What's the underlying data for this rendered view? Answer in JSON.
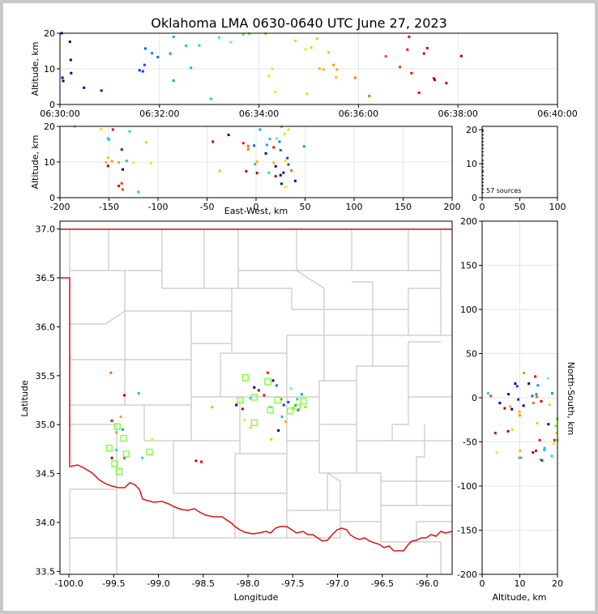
{
  "title": "Oklahoma LMA 0630-0640 UTC June 27, 2023",
  "colors": {
    "state_border": "#e01010",
    "county_lines": "#c8c8c8",
    "station": "#7cff30",
    "frame_bg": "#c8c8c8"
  },
  "chart_data": [
    {
      "id": "time_height",
      "type": "scatter",
      "xlabel": "",
      "ylabel": "Altitude, km",
      "xticks": [
        "06:30:00",
        "06:32:00",
        "06:34:00",
        "06:36:00",
        "06:38:00",
        "06:40:00"
      ],
      "xlim": [
        0,
        600
      ],
      "ylim": [
        0,
        20
      ],
      "yticks": [
        "0",
        "10",
        "20"
      ],
      "x_unit": "seconds after 06:30:00",
      "points": [
        [
          2,
          20,
          "#0000d0"
        ],
        [
          12,
          17.6,
          "#0000a0"
        ],
        [
          13,
          12.5,
          "#00008b"
        ],
        [
          13.5,
          8.8,
          "#0000a0"
        ],
        [
          3,
          7.5,
          "#000080"
        ],
        [
          4,
          6.6,
          "#000090"
        ],
        [
          29,
          4.7,
          "#0000c0"
        ],
        [
          50,
          3.9,
          "#0010e0"
        ],
        [
          96,
          9.6,
          "#0030ff"
        ],
        [
          100,
          9.3,
          "#0040ff"
        ],
        [
          102,
          11.1,
          "#0050ff"
        ],
        [
          103,
          15.7,
          "#0060ff"
        ],
        [
          111,
          14.4,
          "#0080ff"
        ],
        [
          118,
          13.3,
          "#0070ff"
        ],
        [
          133,
          14.3,
          "#00a0ff"
        ],
        [
          137,
          19,
          "#00b0ff"
        ],
        [
          137,
          6.7,
          "#00a0ff"
        ],
        [
          152,
          16.5,
          "#00c8ff"
        ],
        [
          158,
          10.3,
          "#00c0ff"
        ],
        [
          168,
          16.6,
          "#00e0e0"
        ],
        [
          182,
          1.6,
          "#00d0e0"
        ],
        [
          192,
          18.8,
          "#20ffc0"
        ],
        [
          206,
          17.5,
          "#60ff90"
        ],
        [
          221,
          19.7,
          "#40ff40"
        ],
        [
          228,
          19.9,
          "#60ff20"
        ],
        [
          248,
          19.9,
          "#a0f000"
        ],
        [
          252,
          8,
          "#e0f000"
        ],
        [
          256,
          10,
          "#ffe000"
        ],
        [
          260,
          3.5,
          "#ffe000"
        ],
        [
          284,
          17.9,
          "#e0e000"
        ],
        [
          296,
          15.5,
          "#f0f000"
        ],
        [
          298,
          3,
          "#e0e000"
        ],
        [
          303,
          16,
          "#ffd000"
        ],
        [
          310,
          18.5,
          "#ffc000"
        ],
        [
          313,
          10.1,
          "#ffb000"
        ],
        [
          318,
          9.8,
          "#ffb000"
        ],
        [
          324,
          14.6,
          "#ffc000"
        ],
        [
          330,
          11.1,
          "#ff9000"
        ],
        [
          333,
          7.6,
          "#ffc000"
        ],
        [
          334,
          9.8,
          "#ffa000"
        ],
        [
          356,
          7.5,
          "#ff7000"
        ],
        [
          373,
          2.4,
          "#ff6000"
        ],
        [
          393,
          13.5,
          "#ff4000"
        ],
        [
          410,
          10.5,
          "#ff3000"
        ],
        [
          419,
          15.4,
          "#ff1000"
        ],
        [
          421,
          19,
          "#ff0000"
        ],
        [
          424,
          8.8,
          "#ff0000"
        ],
        [
          433,
          3.3,
          "#e00000"
        ],
        [
          439,
          14.3,
          "#d00000"
        ],
        [
          443,
          15.8,
          "#d00000"
        ],
        [
          451,
          7.3,
          "#c00000"
        ],
        [
          452,
          6.9,
          "#c00000"
        ],
        [
          466,
          6,
          "#b00000"
        ],
        [
          484,
          13.6,
          "#a00000"
        ]
      ]
    },
    {
      "id": "ew_height",
      "type": "scatter",
      "xlabel": "East-West, km",
      "ylabel": "Altitude, km",
      "xlim": [
        -200,
        200
      ],
      "ylim": [
        0,
        20
      ],
      "xticks": [
        "-200",
        "-150",
        "-100",
        "-50",
        "0",
        "50",
        "100",
        "150",
        "200"
      ],
      "yticks": [
        "0",
        "10",
        "20"
      ],
      "points": [
        [
          -185,
          20,
          "#40ff40"
        ],
        [
          -158,
          19.2,
          "#ffe000"
        ],
        [
          -146,
          19.1,
          "#e00000"
        ],
        [
          -151,
          16.6,
          "#00d0ff"
        ],
        [
          -150,
          16.3,
          "#00e0e0"
        ],
        [
          -137,
          13.5,
          "#a00000"
        ],
        [
          -112,
          15.5,
          "#e0e000"
        ],
        [
          -129,
          18.6,
          "#00e0e0"
        ],
        [
          -151,
          11.2,
          "#ffc000"
        ],
        [
          -153,
          9.9,
          "#ffb000"
        ],
        [
          -147,
          10.2,
          "#ff9000"
        ],
        [
          -140,
          9.9,
          "#ffa000"
        ],
        [
          -132,
          10.3,
          "#00c8ff"
        ],
        [
          -125,
          9.8,
          "#ffe000"
        ],
        [
          -136,
          7.9,
          "#00008b"
        ],
        [
          -151,
          8.9,
          "#c00000"
        ],
        [
          -140,
          3.3,
          "#d00000"
        ],
        [
          -136,
          2.3,
          "#ff4000"
        ],
        [
          -120,
          1.6,
          "#00e0e0"
        ],
        [
          -107,
          9.6,
          "#ffe000"
        ],
        [
          -137,
          4,
          "#ff3000"
        ],
        [
          -44,
          15.7,
          "#c00000"
        ],
        [
          -28,
          17.6,
          "#0000a0"
        ],
        [
          -13,
          15.3,
          "#ff1000"
        ],
        [
          -8,
          14.5,
          "#ff6000"
        ],
        [
          -8,
          13.6,
          "#ff7000"
        ],
        [
          -2,
          14.6,
          "#0060ff"
        ],
        [
          4,
          19.1,
          "#00b0ff"
        ],
        [
          10,
          12.4,
          "#0000c0"
        ],
        [
          11,
          14.8,
          "#00a0ff"
        ],
        [
          14,
          16.5,
          "#00c8ff"
        ],
        [
          21,
          16.6,
          "#60ff90"
        ],
        [
          24,
          15.7,
          "#0080ff"
        ],
        [
          26,
          19.9,
          "#60ff20"
        ],
        [
          29,
          17.9,
          "#e0e000"
        ],
        [
          33,
          19.1,
          "#e0e000"
        ],
        [
          18,
          14.1,
          "#ff0000"
        ],
        [
          25,
          13.3,
          "#0070ff"
        ],
        [
          30,
          10.3,
          "#ffe000"
        ],
        [
          32,
          11.1,
          "#0040ff"
        ],
        [
          33,
          9.3,
          "#0050ff"
        ],
        [
          28,
          7,
          "#0000d0"
        ],
        [
          25,
          6.3,
          "#000080"
        ],
        [
          20,
          8.8,
          "#0000a0"
        ],
        [
          36,
          7.6,
          "#ff6000"
        ],
        [
          40,
          4.7,
          "#0000c0"
        ],
        [
          -1,
          9.4,
          "#00c0ff"
        ],
        [
          1,
          10.1,
          "#ffb000"
        ],
        [
          -10,
          7.4,
          "#c00000"
        ],
        [
          1,
          6.9,
          "#b00000"
        ],
        [
          13,
          7,
          "#00e0e0"
        ],
        [
          20,
          6,
          "#c00000"
        ],
        [
          26,
          3.9,
          "#0010e0"
        ],
        [
          30,
          3,
          "#ffe000"
        ],
        [
          -37,
          7.5,
          "#ffb000"
        ],
        [
          49,
          14.4,
          "#00a0ff"
        ],
        [
          18,
          9.8,
          "#ffb000"
        ]
      ]
    },
    {
      "id": "histogram",
      "type": "scatter",
      "xlim": [
        0,
        100
      ],
      "ylim": [
        0,
        21
      ],
      "xticks": [
        "0",
        "50",
        "100"
      ],
      "yticks": [
        "0",
        "10",
        "20"
      ],
      "annotation": "57 sources",
      "points": [
        [
          1,
          20
        ],
        [
          1,
          19.5
        ],
        [
          1,
          18.5
        ],
        [
          1,
          17.5
        ],
        [
          1,
          16.5
        ],
        [
          1,
          15.5
        ],
        [
          1,
          14.5
        ],
        [
          1,
          13.5
        ],
        [
          1,
          12.5
        ],
        [
          1,
          11
        ],
        [
          1,
          10
        ],
        [
          1,
          9
        ],
        [
          1,
          8
        ],
        [
          1,
          7.5
        ],
        [
          1,
          6.5
        ],
        [
          1,
          5.5
        ],
        [
          1,
          4.5
        ],
        [
          1,
          3.5
        ],
        [
          1,
          2.5
        ],
        [
          1,
          1.5
        ]
      ]
    },
    {
      "id": "plan_view",
      "type": "scatter",
      "xlabel": "Longitude",
      "ylabel": "Latitude",
      "xlim": [
        -100.1,
        -95.72
      ],
      "ylim": [
        33.47,
        37.08
      ],
      "xticks": [
        "-100.0",
        "-99.5",
        "-99.0",
        "-98.5",
        "-98.0",
        "-97.5",
        "-97.0",
        "-96.5",
        "-96.0"
      ],
      "yticks": [
        "33.5",
        "34.0",
        "34.5",
        "35.0",
        "35.5",
        "36.0",
        "36.5",
        "37.0"
      ],
      "stations": [
        [
          -99.46,
          34.98
        ],
        [
          -99.39,
          34.86
        ],
        [
          -99.55,
          34.76
        ],
        [
          -99.49,
          34.6
        ],
        [
          -99.44,
          34.52
        ],
        [
          -99.36,
          34.7
        ],
        [
          -99.1,
          34.72
        ],
        [
          -98.09,
          35.25
        ],
        [
          -98.03,
          35.48
        ],
        [
          -97.93,
          35.28
        ],
        [
          -97.93,
          35.02
        ],
        [
          -97.78,
          35.44
        ],
        [
          -97.75,
          35.15
        ],
        [
          -97.67,
          35.25
        ],
        [
          -97.53,
          35.14
        ],
        [
          -97.45,
          35.18
        ],
        [
          -97.38,
          35.24
        ]
      ],
      "points": [
        [
          -99.53,
          35.53,
          "#ff6000"
        ],
        [
          -99.52,
          35.04,
          "#e00000"
        ],
        [
          -99.47,
          34.92,
          "#ff9000"
        ],
        [
          -99.42,
          35.08,
          "#ffa000"
        ],
        [
          -99.4,
          34.95,
          "#00a0ff"
        ],
        [
          -99.38,
          35.3,
          "#c00000"
        ],
        [
          -99.47,
          34.74,
          "#00d0ff"
        ],
        [
          -99.52,
          34.66,
          "#c00000"
        ],
        [
          -99.38,
          34.66,
          "#ff3000"
        ],
        [
          -99.22,
          35.32,
          "#00c8ff"
        ],
        [
          -99.07,
          34.85,
          "#ffe000"
        ],
        [
          -99.18,
          34.66,
          "#00e0e0"
        ],
        [
          -98.58,
          34.63,
          "#d00000"
        ],
        [
          -98.52,
          34.62,
          "#e00000"
        ],
        [
          -98.13,
          35.2,
          "#0000a0"
        ],
        [
          -97.93,
          35.38,
          "#00008b"
        ],
        [
          -97.97,
          35.27,
          "#00b0ff"
        ],
        [
          -98.04,
          35.05,
          "#ffe000"
        ],
        [
          -97.88,
          35.35,
          "#a00000"
        ],
        [
          -97.82,
          35.3,
          "#ff0000"
        ],
        [
          -97.78,
          35.53,
          "#ff1000"
        ],
        [
          -97.72,
          35.45,
          "#0000c0"
        ],
        [
          -97.68,
          35.4,
          "#0070ff"
        ],
        [
          -97.75,
          35.18,
          "#00e0e0"
        ],
        [
          -97.63,
          35.26,
          "#ff4000"
        ],
        [
          -97.6,
          35.2,
          "#0040ff"
        ],
        [
          -97.55,
          35.23,
          "#0050ff"
        ],
        [
          -97.62,
          35.08,
          "#00c0ff"
        ],
        [
          -97.66,
          34.94,
          "#000080"
        ],
        [
          -97.58,
          35.03,
          "#ffb000"
        ],
        [
          -97.5,
          35.17,
          "#ffc000"
        ],
        [
          -97.44,
          35.15,
          "#0000d0"
        ],
        [
          -97.4,
          35.31,
          "#00a0ff"
        ],
        [
          -97.47,
          35.2,
          "#0060ff"
        ],
        [
          -98.4,
          35.18,
          "#ffb000"
        ],
        [
          -98.06,
          35.16,
          "#c00000"
        ],
        [
          -97.97,
          34.97,
          "#e0e000"
        ],
        [
          -97.74,
          34.85,
          "#ffc000"
        ],
        [
          -97.52,
          35.37,
          "#60ff90"
        ],
        [
          -97.45,
          35.26,
          "#00d0e0"
        ],
        [
          -97.36,
          35.18,
          "#a0f000"
        ]
      ]
    },
    {
      "id": "height_ns",
      "type": "scatter",
      "xlabel": "Altitude, km",
      "ylabel": "North-South, km",
      "xlim": [
        0,
        20
      ],
      "ylim": [
        -200,
        200
      ],
      "xticks": [
        "0",
        "10",
        "20"
      ],
      "yticks": [
        "-200",
        "-150",
        "-100",
        "-50",
        "0",
        "50",
        "100",
        "150",
        "200"
      ],
      "points": [
        [
          1.6,
          5,
          "#00e0e0"
        ],
        [
          2.3,
          2,
          "#ff4000"
        ],
        [
          3.5,
          -40,
          "#d00000"
        ],
        [
          3.9,
          -62,
          "#ffe000"
        ],
        [
          4.7,
          -6,
          "#0000c0"
        ],
        [
          6,
          -12,
          "#c00000"
        ],
        [
          6.9,
          -38,
          "#b00000"
        ],
        [
          7,
          4,
          "#0000d0"
        ],
        [
          7.5,
          -10,
          "#ffb000"
        ],
        [
          7.9,
          -13,
          "#00008b"
        ],
        [
          8,
          -36,
          "#e0e000"
        ],
        [
          8.8,
          16,
          "#0000a0"
        ],
        [
          9.3,
          13,
          "#0040ff"
        ],
        [
          9.6,
          -2,
          "#0030ff"
        ],
        [
          9.8,
          -68,
          "#ffa000"
        ],
        [
          9.9,
          -16,
          "#ffb000"
        ],
        [
          10,
          -20,
          "#ff9000"
        ],
        [
          10.1,
          -60,
          "#ffb000"
        ],
        [
          10.3,
          -68,
          "#00c0ff"
        ],
        [
          11,
          -9,
          "#0000a0"
        ],
        [
          11.1,
          28,
          "#ff9000"
        ],
        [
          12.4,
          16,
          "#0000c0"
        ],
        [
          13.3,
          2,
          "#0070ff"
        ],
        [
          13.5,
          -62,
          "#a00000"
        ],
        [
          13.6,
          -6,
          "#ff7000"
        ],
        [
          14.1,
          24,
          "#ff0000"
        ],
        [
          14.3,
          -60,
          "#d00000"
        ],
        [
          14.4,
          4,
          "#00a0ff"
        ],
        [
          14.5,
          1,
          "#ff6000"
        ],
        [
          14.6,
          -29,
          "#ffc000"
        ],
        [
          15.3,
          -48,
          "#ff1000"
        ],
        [
          15.5,
          -70,
          "#00e0e0"
        ],
        [
          15.7,
          -4,
          "#c00000"
        ],
        [
          15.9,
          -71,
          "#e00000"
        ],
        [
          16.5,
          -59,
          "#00c8ff"
        ],
        [
          16.6,
          -57,
          "#00d0ff"
        ],
        [
          17.5,
          22,
          "#60ff90"
        ],
        [
          17.6,
          -30,
          "#0000a0"
        ],
        [
          17.9,
          -8,
          "#e0e000"
        ],
        [
          18.5,
          -66,
          "#00e0e0"
        ],
        [
          18.6,
          5,
          "#00a0ff"
        ],
        [
          19,
          -52,
          "#ffe000"
        ],
        [
          19.2,
          -48,
          "#ff1000"
        ],
        [
          19.5,
          -32,
          "#a0f000"
        ],
        [
          19.9,
          -24,
          "#60ff20"
        ],
        [
          20,
          -48,
          "#40ff40"
        ],
        [
          19.7,
          -40,
          "#ffe000"
        ],
        [
          14.8,
          14,
          "#00a0ff"
        ]
      ]
    }
  ]
}
